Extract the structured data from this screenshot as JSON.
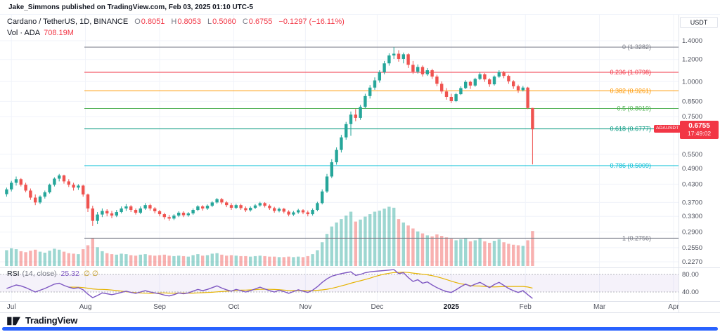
{
  "header": {
    "publish_line": "Jake_Simmons published on TradingView.com, Feb 03, 2025 01:10 UTC-5"
  },
  "legend": {
    "symbol": "Cardano / TetherUS, 1D, BINANCE",
    "ohlc": [
      {
        "label": "O",
        "value": "0.8051"
      },
      {
        "label": "H",
        "value": "0.8053"
      },
      {
        "label": "L",
        "value": "0.5060"
      },
      {
        "label": "C",
        "value": "0.6755"
      }
    ],
    "change": "−0.1297 (−16.11%)",
    "volume_label": "Vol · ADA",
    "volume_value": "708.19M"
  },
  "rsi_legend": {
    "title": "RSI",
    "params": "(14, close)",
    "value": "25.32",
    "extra": "∅ ∅"
  },
  "price_badge": {
    "symbol": "ADAUSDT",
    "price": "0.6755",
    "countdown": "17:49:02"
  },
  "axis": {
    "currency": "USDT"
  },
  "footer": {
    "logo_text": "TradingView"
  },
  "colors": {
    "up": "#26a69a",
    "down": "#ef5350",
    "vol_up": "rgba(38,166,154,0.45)",
    "vol_down": "rgba(239,83,80,0.45)",
    "grid": "#f0f3fa",
    "border": "#e0e3eb",
    "text_dark": "#131722",
    "text_axis": "#50535e",
    "rsi": "#7e57c2",
    "rsi_ma": "#e5b302",
    "rsi_band_fill": "rgba(126,87,194,0.08)",
    "rsi_band_line": "rgba(120,123,134,0.55)",
    "badge_red": "#f23645",
    "accent_blue": "#2962ff"
  },
  "chart_data": {
    "type": "candlestick",
    "title": "Cardano / TetherUS",
    "exchange": "BINANCE",
    "interval": "1D",
    "price_scale": {
      "type": "log",
      "top": 1.4,
      "bottom": 0.227
    },
    "last_price": 0.6755,
    "ohlc": {
      "open": 0.8051,
      "high": 0.8053,
      "low": 0.506,
      "close": 0.6755,
      "change": -0.1297,
      "change_pct": -16.11
    },
    "volume_current": "708.19M",
    "rsi_settings": {
      "length": 14,
      "source": "close",
      "value": 25.32,
      "upper": 80,
      "lower": 40
    },
    "fib_levels": [
      {
        "label": "0 (1.3282)",
        "price": 1.3282,
        "color": "#787b86"
      },
      {
        "label": "0.236 (1.0798)",
        "price": 1.0798,
        "color": "#f23645"
      },
      {
        "label": "0.382 (0.9261)",
        "price": 0.9261,
        "color": "#ff9800"
      },
      {
        "label": "0.5 (0.8019)",
        "price": 0.8019,
        "color": "#4caf50"
      },
      {
        "label": "0.618 (0.6777)",
        "price": 0.6777,
        "color": "#089981"
      },
      {
        "label": "0.786 (0.5009)",
        "price": 0.5009,
        "color": "#00bcd4"
      },
      {
        "label": "1 (0.2756)",
        "price": 0.2756,
        "color": "#787b86"
      }
    ],
    "price_ticks": [
      {
        "value": 1.4,
        "label": "1.4000"
      },
      {
        "value": 1.2,
        "label": "1.2000"
      },
      {
        "value": 1.0,
        "label": "1.0000"
      },
      {
        "value": 0.85,
        "label": "0.8500"
      },
      {
        "value": 0.75,
        "label": "0.7500"
      },
      {
        "value": 0.55,
        "label": "0.5500"
      },
      {
        "value": 0.49,
        "label": "0.4900"
      },
      {
        "value": 0.43,
        "label": "0.4300"
      },
      {
        "value": 0.37,
        "label": "0.3700"
      },
      {
        "value": 0.33,
        "label": "0.3300"
      },
      {
        "value": 0.29,
        "label": "0.2900"
      },
      {
        "value": 0.255,
        "label": "0.2550"
      },
      {
        "value": 0.227,
        "label": "0.2270"
      }
    ],
    "rsi_ticks": [
      {
        "value": 80,
        "label": "80.00"
      },
      {
        "value": 40,
        "label": "40.00"
      }
    ],
    "time_ticks": [
      {
        "label": "Jul",
        "slot": 1
      },
      {
        "label": "Aug",
        "slot": 16.5
      },
      {
        "label": "Sep",
        "slot": 32
      },
      {
        "label": "Oct",
        "slot": 47.5
      },
      {
        "label": "Nov",
        "slot": 62.5
      },
      {
        "label": "Dec",
        "slot": 77.5
      },
      {
        "label": "2025",
        "slot": 93,
        "strong": true
      },
      {
        "label": "Feb",
        "slot": 108.5
      },
      {
        "label": "Mar",
        "slot": 124
      },
      {
        "label": "Apr",
        "slot": 139.5
      }
    ],
    "candles": [
      [
        0.396,
        0.418,
        0.388,
        0.412,
        320
      ],
      [
        0.412,
        0.442,
        0.405,
        0.435,
        360
      ],
      [
        0.435,
        0.458,
        0.425,
        0.448,
        340
      ],
      [
        0.448,
        0.452,
        0.422,
        0.428,
        300
      ],
      [
        0.428,
        0.435,
        0.402,
        0.408,
        280
      ],
      [
        0.408,
        0.415,
        0.378,
        0.385,
        310
      ],
      [
        0.385,
        0.395,
        0.362,
        0.37,
        330
      ],
      [
        0.37,
        0.392,
        0.365,
        0.388,
        290
      ],
      [
        0.388,
        0.408,
        0.382,
        0.402,
        270
      ],
      [
        0.402,
        0.432,
        0.398,
        0.428,
        310
      ],
      [
        0.428,
        0.455,
        0.422,
        0.45,
        350
      ],
      [
        0.45,
        0.468,
        0.44,
        0.462,
        330
      ],
      [
        0.462,
        0.465,
        0.432,
        0.44,
        290
      ],
      [
        0.44,
        0.448,
        0.42,
        0.428,
        260
      ],
      [
        0.428,
        0.435,
        0.408,
        0.418,
        250
      ],
      [
        0.418,
        0.43,
        0.41,
        0.425,
        240
      ],
      [
        0.425,
        0.428,
        0.388,
        0.395,
        340
      ],
      [
        0.395,
        0.398,
        0.342,
        0.352,
        420
      ],
      [
        0.352,
        0.36,
        0.305,
        0.318,
        560
      ],
      [
        0.318,
        0.342,
        0.31,
        0.335,
        380
      ],
      [
        0.335,
        0.352,
        0.328,
        0.345,
        300
      ],
      [
        0.345,
        0.35,
        0.33,
        0.338,
        260
      ],
      [
        0.338,
        0.345,
        0.325,
        0.332,
        240
      ],
      [
        0.332,
        0.348,
        0.328,
        0.342,
        230
      ],
      [
        0.342,
        0.358,
        0.338,
        0.352,
        250
      ],
      [
        0.352,
        0.365,
        0.345,
        0.358,
        240
      ],
      [
        0.358,
        0.362,
        0.342,
        0.348,
        220
      ],
      [
        0.348,
        0.352,
        0.335,
        0.34,
        210
      ],
      [
        0.34,
        0.358,
        0.336,
        0.352,
        230
      ],
      [
        0.352,
        0.368,
        0.348,
        0.362,
        240
      ],
      [
        0.362,
        0.366,
        0.346,
        0.352,
        220
      ],
      [
        0.352,
        0.356,
        0.338,
        0.344,
        210
      ],
      [
        0.344,
        0.348,
        0.33,
        0.336,
        220
      ],
      [
        0.336,
        0.34,
        0.322,
        0.328,
        230
      ],
      [
        0.328,
        0.334,
        0.318,
        0.324,
        210
      ],
      [
        0.324,
        0.336,
        0.32,
        0.332,
        200
      ],
      [
        0.332,
        0.344,
        0.328,
        0.34,
        210
      ],
      [
        0.34,
        0.344,
        0.328,
        0.333,
        200
      ],
      [
        0.333,
        0.342,
        0.329,
        0.338,
        190
      ],
      [
        0.338,
        0.352,
        0.334,
        0.348,
        220
      ],
      [
        0.348,
        0.362,
        0.344,
        0.358,
        240
      ],
      [
        0.358,
        0.362,
        0.346,
        0.352,
        210
      ],
      [
        0.352,
        0.364,
        0.348,
        0.36,
        220
      ],
      [
        0.36,
        0.374,
        0.356,
        0.37,
        250
      ],
      [
        0.37,
        0.384,
        0.366,
        0.38,
        260
      ],
      [
        0.38,
        0.384,
        0.364,
        0.37,
        230
      ],
      [
        0.37,
        0.374,
        0.356,
        0.362,
        210
      ],
      [
        0.362,
        0.368,
        0.348,
        0.354,
        220
      ],
      [
        0.354,
        0.366,
        0.35,
        0.362,
        210
      ],
      [
        0.362,
        0.366,
        0.348,
        0.353,
        200
      ],
      [
        0.353,
        0.358,
        0.342,
        0.347,
        200
      ],
      [
        0.347,
        0.358,
        0.343,
        0.354,
        190
      ],
      [
        0.354,
        0.365,
        0.35,
        0.361,
        200
      ],
      [
        0.361,
        0.372,
        0.357,
        0.368,
        210
      ],
      [
        0.368,
        0.371,
        0.355,
        0.36,
        200
      ],
      [
        0.36,
        0.364,
        0.348,
        0.353,
        190
      ],
      [
        0.353,
        0.357,
        0.34,
        0.345,
        190
      ],
      [
        0.345,
        0.355,
        0.341,
        0.351,
        180
      ],
      [
        0.351,
        0.354,
        0.338,
        0.343,
        180
      ],
      [
        0.343,
        0.347,
        0.33,
        0.335,
        190
      ],
      [
        0.335,
        0.345,
        0.331,
        0.341,
        180
      ],
      [
        0.341,
        0.351,
        0.337,
        0.347,
        190
      ],
      [
        0.347,
        0.35,
        0.336,
        0.341,
        180
      ],
      [
        0.341,
        0.346,
        0.33,
        0.336,
        200
      ],
      [
        0.336,
        0.352,
        0.332,
        0.348,
        240
      ],
      [
        0.348,
        0.372,
        0.344,
        0.368,
        320
      ],
      [
        0.368,
        0.412,
        0.364,
        0.405,
        480
      ],
      [
        0.405,
        0.468,
        0.4,
        0.458,
        650
      ],
      [
        0.458,
        0.528,
        0.452,
        0.515,
        800
      ],
      [
        0.515,
        0.582,
        0.505,
        0.57,
        880
      ],
      [
        0.57,
        0.645,
        0.558,
        0.632,
        950
      ],
      [
        0.632,
        0.718,
        0.62,
        0.705,
        1020
      ],
      [
        0.705,
        0.782,
        0.64,
        0.762,
        1100
      ],
      [
        0.762,
        0.798,
        0.722,
        0.742,
        900
      ],
      [
        0.742,
        0.825,
        0.73,
        0.812,
        940
      ],
      [
        0.812,
        0.905,
        0.8,
        0.888,
        1000
      ],
      [
        0.888,
        0.972,
        0.87,
        0.952,
        1050
      ],
      [
        0.952,
        1.035,
        0.935,
        1.01,
        1100
      ],
      [
        1.01,
        1.098,
        0.992,
        1.08,
        1120
      ],
      [
        1.08,
        1.185,
        1.062,
        1.162,
        1160
      ],
      [
        1.162,
        1.262,
        1.14,
        1.24,
        1200
      ],
      [
        1.24,
        1.3282,
        1.205,
        1.258,
        1180
      ],
      [
        1.258,
        1.295,
        1.178,
        1.205,
        950
      ],
      [
        1.205,
        1.27,
        1.162,
        1.252,
        880
      ],
      [
        1.252,
        1.262,
        1.118,
        1.148,
        820
      ],
      [
        1.148,
        1.185,
        1.065,
        1.085,
        760
      ],
      [
        1.085,
        1.152,
        1.068,
        1.128,
        700
      ],
      [
        1.128,
        1.142,
        1.042,
        1.062,
        660
      ],
      [
        1.062,
        1.118,
        1.048,
        1.098,
        620
      ],
      [
        1.098,
        1.112,
        1.022,
        1.042,
        600
      ],
      [
        1.042,
        1.058,
        0.962,
        0.982,
        640
      ],
      [
        0.982,
        1.002,
        0.905,
        0.922,
        610
      ],
      [
        0.922,
        0.948,
        0.862,
        0.882,
        580
      ],
      [
        0.882,
        0.905,
        0.838,
        0.852,
        550
      ],
      [
        0.852,
        0.912,
        0.845,
        0.902,
        520
      ],
      [
        0.902,
        0.962,
        0.895,
        0.948,
        540
      ],
      [
        0.948,
        1.012,
        0.94,
        0.998,
        560
      ],
      [
        0.998,
        1.008,
        0.942,
        0.968,
        500
      ],
      [
        0.968,
        1.032,
        0.958,
        1.022,
        520
      ],
      [
        1.022,
        1.078,
        1.012,
        1.062,
        560
      ],
      [
        1.062,
        1.072,
        0.998,
        1.018,
        500
      ],
      [
        1.018,
        1.028,
        0.958,
        0.978,
        470
      ],
      [
        0.978,
        1.052,
        0.968,
        1.042,
        510
      ],
      [
        1.042,
        1.098,
        1.032,
        1.082,
        540
      ],
      [
        1.082,
        1.092,
        1.028,
        1.048,
        480
      ],
      [
        1.048,
        1.058,
        0.982,
        1.002,
        450
      ],
      [
        1.002,
        1.012,
        0.942,
        0.962,
        430
      ],
      [
        0.962,
        0.975,
        0.912,
        0.932,
        420
      ],
      [
        0.932,
        0.965,
        0.922,
        0.952,
        410
      ],
      [
        0.952,
        0.958,
        0.798,
        0.805,
        520
      ],
      [
        0.8051,
        0.8053,
        0.506,
        0.6755,
        708.19
      ]
    ],
    "rsi": [
      48,
      52,
      56,
      54,
      50,
      45,
      40,
      44,
      48,
      53,
      58,
      60,
      55,
      51,
      48,
      50,
      45,
      35,
      27,
      32,
      38,
      36,
      34,
      36,
      39,
      42,
      39,
      37,
      40,
      43,
      40,
      38,
      36,
      33,
      31,
      34,
      38,
      36,
      38,
      42,
      46,
      43,
      46,
      50,
      54,
      49,
      45,
      42,
      46,
      43,
      40,
      43,
      47,
      51,
      47,
      43,
      40,
      44,
      41,
      37,
      41,
      45,
      42,
      39,
      44,
      52,
      62,
      70,
      76,
      79,
      82,
      84,
      86,
      78,
      80,
      84,
      86,
      87,
      88,
      89,
      90,
      91,
      82,
      84,
      73,
      64,
      68,
      60,
      63,
      56,
      50,
      45,
      41,
      39,
      45,
      52,
      58,
      53,
      58,
      62,
      56,
      50,
      57,
      62,
      55,
      48,
      43,
      39,
      43,
      34,
      25.32
    ]
  }
}
